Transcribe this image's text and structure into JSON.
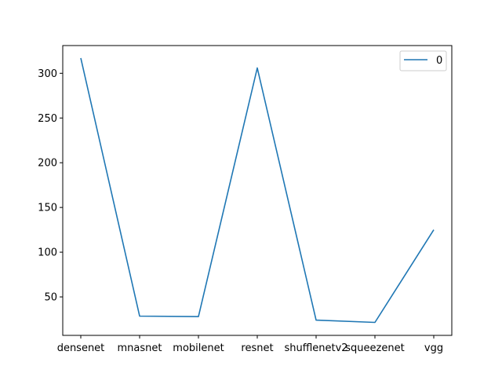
{
  "chart_data": {
    "type": "line",
    "categories": [
      "densenet",
      "mnasnet",
      "mobilenet",
      "resnet",
      "shufflenetv2",
      "squeezenet",
      "vgg"
    ],
    "series": [
      {
        "name": "0",
        "values": [
          317,
          28.5,
          28,
          306,
          24,
          21.5,
          125
        ],
        "color": "#1f77b4"
      }
    ],
    "yticks": [
      50,
      100,
      150,
      200,
      250,
      300
    ],
    "ylim": [
      7,
      331
    ],
    "grid": false,
    "legend": "top-right",
    "title": "",
    "xlabel": "",
    "ylabel": ""
  }
}
